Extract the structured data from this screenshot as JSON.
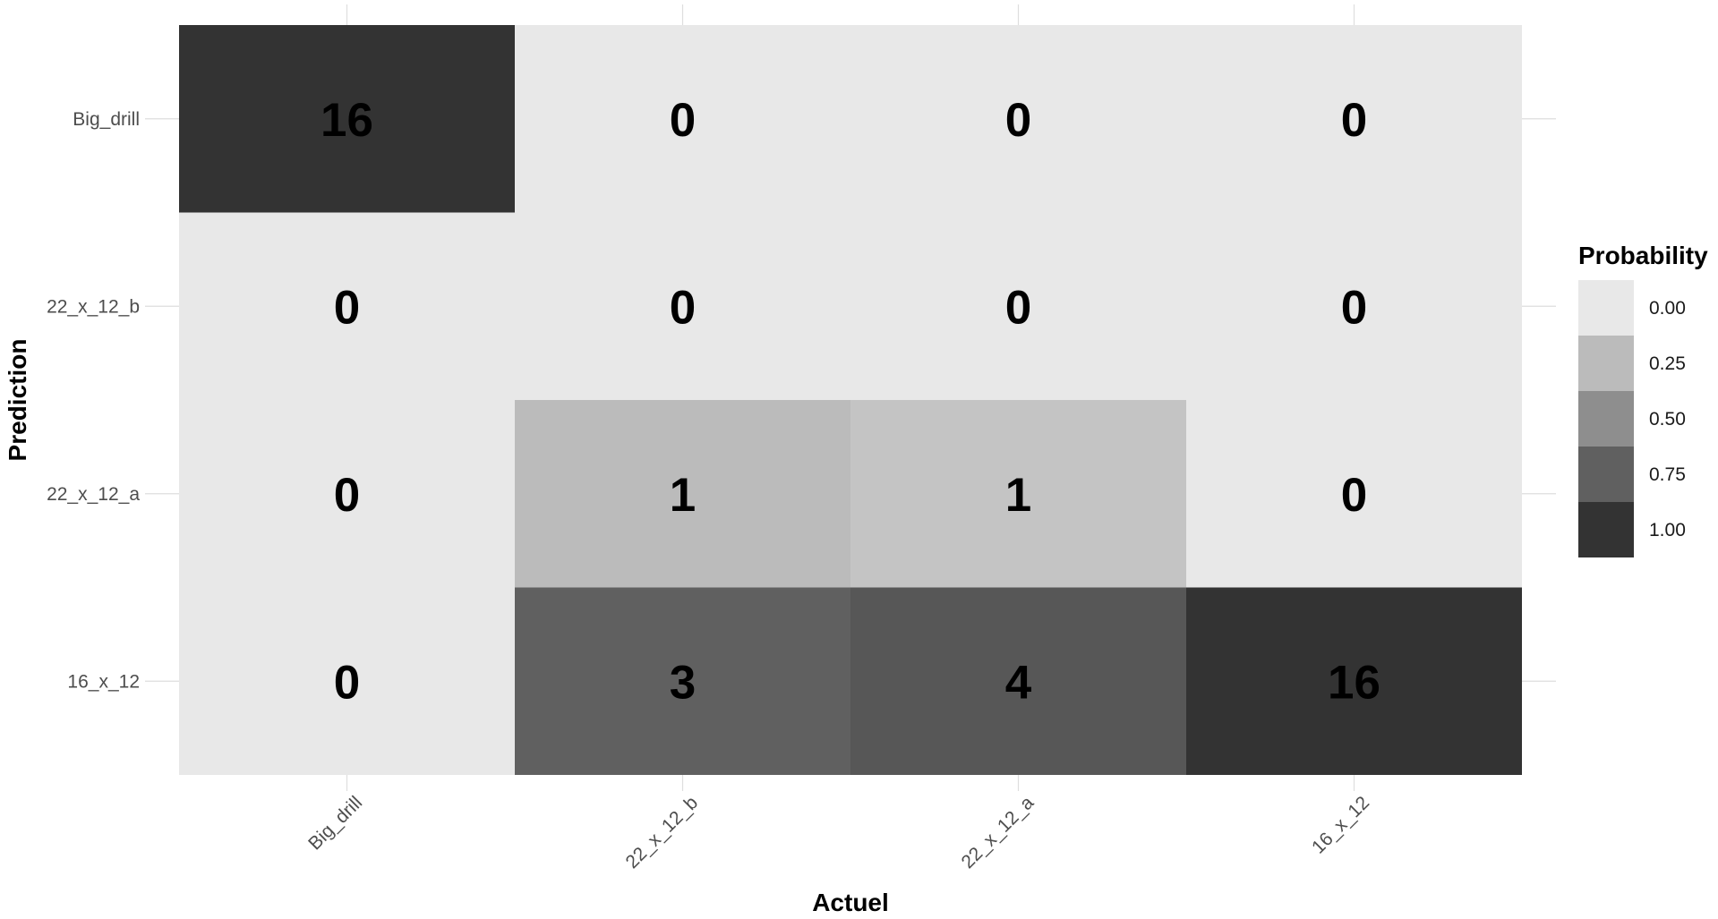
{
  "chart_data": {
    "type": "heatmap",
    "title": "",
    "xlabel": "Actuel",
    "ylabel": "Prediction",
    "x_categories": [
      "Big_drill",
      "22_x_12_b",
      "22_x_12_a",
      "16_x_12"
    ],
    "y_categories": [
      "Big_drill",
      "22_x_12_b",
      "22_x_12_a",
      "16_x_12"
    ],
    "cells": [
      {
        "x": "Big_drill",
        "y": "Big_drill",
        "count": 16,
        "probability": 1.0
      },
      {
        "x": "22_x_12_b",
        "y": "Big_drill",
        "count": 0,
        "probability": 0.0
      },
      {
        "x": "22_x_12_a",
        "y": "Big_drill",
        "count": 0,
        "probability": 0.0
      },
      {
        "x": "16_x_12",
        "y": "Big_drill",
        "count": 0,
        "probability": 0.0
      },
      {
        "x": "Big_drill",
        "y": "22_x_12_b",
        "count": 0,
        "probability": 0.0
      },
      {
        "x": "22_x_12_b",
        "y": "22_x_12_b",
        "count": 0,
        "probability": 0.0
      },
      {
        "x": "22_x_12_a",
        "y": "22_x_12_b",
        "count": 0,
        "probability": 0.0
      },
      {
        "x": "16_x_12",
        "y": "22_x_12_b",
        "count": 0,
        "probability": 0.0
      },
      {
        "x": "Big_drill",
        "y": "22_x_12_a",
        "count": 0,
        "probability": 0.0
      },
      {
        "x": "22_x_12_b",
        "y": "22_x_12_a",
        "count": 1,
        "probability": 0.25
      },
      {
        "x": "22_x_12_a",
        "y": "22_x_12_a",
        "count": 1,
        "probability": 0.2
      },
      {
        "x": "16_x_12",
        "y": "22_x_12_a",
        "count": 0,
        "probability": 0.0
      },
      {
        "x": "Big_drill",
        "y": "16_x_12",
        "count": 0,
        "probability": 0.0
      },
      {
        "x": "22_x_12_b",
        "y": "16_x_12",
        "count": 3,
        "probability": 0.75
      },
      {
        "x": "22_x_12_a",
        "y": "16_x_12",
        "count": 4,
        "probability": 0.8
      },
      {
        "x": "16_x_12",
        "y": "16_x_12",
        "count": 16,
        "probability": 1.0
      }
    ],
    "legend": {
      "title": "Probability",
      "placement": "right",
      "breaks": [
        "0.00",
        "0.25",
        "0.50",
        "0.75",
        "1.00"
      ],
      "low_color": "#e8e8e8",
      "high_color": "#333333"
    },
    "grid": true
  }
}
